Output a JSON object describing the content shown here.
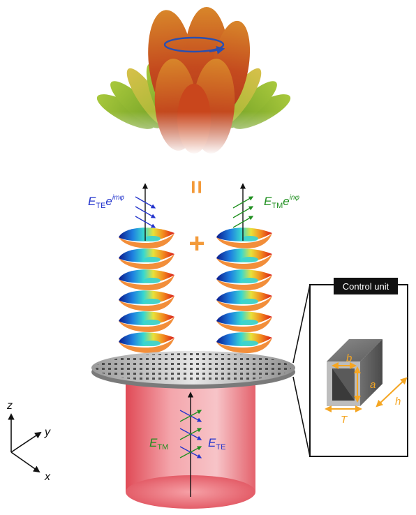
{
  "labels": {
    "e_left_base": "E",
    "e_left_sub": "TE",
    "e_left_exp_base": "e",
    "e_left_exp_sup": "imφ",
    "e_right_base": "E",
    "e_right_sub": "TM",
    "e_right_exp_base": "e",
    "e_right_exp_sup": "inφ",
    "plus_symbol": "+",
    "equals_symbol": "=",
    "beam_tm_base": "E",
    "beam_tm_sub": "TM",
    "beam_te_base": "E",
    "beam_te_sub": "TE",
    "axis_z": "z",
    "axis_y": "y",
    "axis_x": "x",
    "control_unit_title": "Control unit",
    "dim_b": "b",
    "dim_a": "a",
    "dim_h": "h",
    "dim_T": "T"
  },
  "colors": {
    "te_blue": "#2233cc",
    "tm_green": "#1f8f1f",
    "accent_orange": "#f39a3a",
    "dimension_orange": "#f5a623",
    "beam_red": "#e8606a",
    "lobe_red": "#c8401c",
    "lobe_green": "#8fbf2a"
  },
  "icons": {
    "rotation_arrow": "circular-arrow-icon"
  }
}
